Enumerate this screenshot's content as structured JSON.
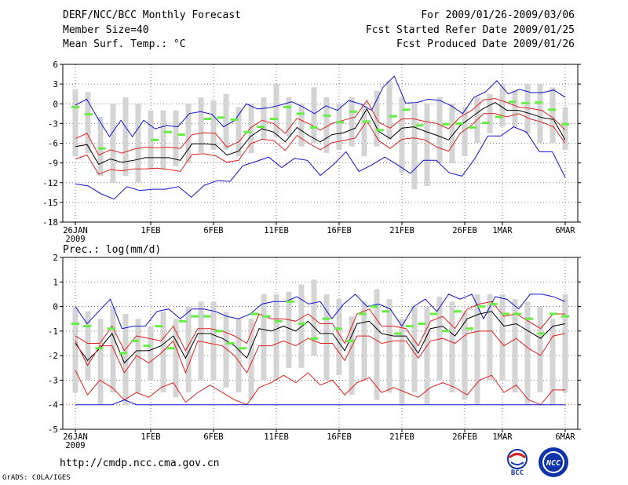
{
  "header": {
    "title": "DERF/NCC/BCC Monthly Forecast",
    "member_size": "Member Size=40",
    "variable": "Mean Surf. Temp.: °C",
    "period": "For 2009/01/26-2009/03/06",
    "started": "Fcst Started Refer Date 2009/01/25",
    "produced": "Fcst Produced Date 2009/01/26"
  },
  "footer": {
    "url": "http://cmdp.ncc.cma.gov.cn",
    "grads": "GrADS: COLA/IGES",
    "logo_bcc": "BCC",
    "logo_ncc": "NCC"
  },
  "colors": {
    "box": "#d4d4d4",
    "median": "#66ee44",
    "mean": "#000000",
    "inner": "#dd2222",
    "outer": "#1111cc",
    "grid": "#555555"
  },
  "chart_data": [
    {
      "id": "temp",
      "type": "line",
      "title": "Mean Surf. Temp.: °C",
      "ylim": [
        -18,
        6
      ],
      "yticks": [
        -18,
        -15,
        -12,
        -9,
        -6,
        -3,
        0,
        3,
        6
      ],
      "x_tick_labels": [
        {
          "day": 0,
          "label": "26JAN",
          "sub": "2009"
        },
        {
          "day": 6,
          "label": "1FEB"
        },
        {
          "day": 11,
          "label": "6FEB"
        },
        {
          "day": 16,
          "label": "11FEB"
        },
        {
          "day": 21,
          "label": "16FEB"
        },
        {
          "day": 26,
          "label": "21FEB"
        },
        {
          "day": 31,
          "label": "26FEB"
        },
        {
          "day": 34,
          "label": "1MAR"
        },
        {
          "day": 39,
          "label": "6MAR"
        }
      ],
      "boxes": [
        {
          "low": -8,
          "high": 2.2
        },
        {
          "low": -7.5,
          "high": 1.8
        },
        {
          "low": -11,
          "high": -2
        },
        {
          "low": -12,
          "high": 0
        },
        {
          "low": -11,
          "high": 1
        },
        {
          "low": -12,
          "high": 0
        },
        {
          "low": -10,
          "high": -1
        },
        {
          "low": -10,
          "high": -1
        },
        {
          "low": -9.5,
          "high": -1
        },
        {
          "low": -9,
          "high": 0
        },
        {
          "low": -7.5,
          "high": 1
        },
        {
          "low": -7,
          "high": 0.5
        },
        {
          "low": -7,
          "high": 1.5
        },
        {
          "low": -8,
          "high": -0.5
        },
        {
          "low": -7.5,
          "high": 0
        },
        {
          "low": -5.5,
          "high": 1
        },
        {
          "low": -5,
          "high": 3
        },
        {
          "low": -5,
          "high": 1
        },
        {
          "low": -6.5,
          "high": 0
        },
        {
          "low": -6,
          "high": 2.5
        },
        {
          "low": -7.5,
          "high": 1
        },
        {
          "low": -7,
          "high": 0
        },
        {
          "low": -6.5,
          "high": 1
        },
        {
          "low": -8,
          "high": 0
        },
        {
          "low": -6.5,
          "high": 2
        },
        {
          "low": -5.5,
          "high": 3.5
        },
        {
          "low": -10.5,
          "high": 1
        },
        {
          "low": -13,
          "high": 0
        },
        {
          "low": -12.5,
          "high": 0
        },
        {
          "low": -9,
          "high": 1
        },
        {
          "low": -9,
          "high": 0
        },
        {
          "low": -8,
          "high": -0.5
        },
        {
          "low": -6,
          "high": 1
        },
        {
          "low": -4.5,
          "high": 1.5
        },
        {
          "low": -3.5,
          "high": 3
        },
        {
          "low": -3.5,
          "high": 2
        },
        {
          "low": -4.5,
          "high": 3
        },
        {
          "low": -6,
          "high": 3
        },
        {
          "low": -6,
          "high": 2.5
        },
        {
          "low": -7,
          "high": -0.5
        }
      ],
      "series": [
        {
          "name": "max",
          "style": "outer",
          "values": [
            -0.2,
            0.7,
            -2.3,
            -5,
            -2.5,
            -5,
            -2.5,
            -3.8,
            -3.3,
            -3.5,
            -1.5,
            -1.2,
            -1.6,
            -3.5,
            -2.5,
            0,
            -0.8,
            -0.6,
            -0.2,
            0.3,
            -0.5,
            -1.5,
            -0.3,
            -1,
            0.5,
            0,
            -1,
            2.5,
            4.2,
            0.1,
            0.2,
            0.7,
            0.5,
            -0.3,
            -1.5,
            1,
            1.8,
            3.5,
            1.5,
            2.2,
            1.7,
            1.7,
            2.1,
            1
          ]
        },
        {
          "name": "upper",
          "style": "inner",
          "values": [
            -5.3,
            -4.5,
            -7.8,
            -7,
            -7.5,
            -6.9,
            -6.6,
            -6.7,
            -6.6,
            -6.8,
            -4.7,
            -4.4,
            -4.5,
            -6.6,
            -5.8,
            -3.7,
            -2.5,
            -3,
            -4.5,
            -2.2,
            -3,
            -4,
            -3,
            -2.5,
            -2,
            0.5,
            -2.8,
            -3.7,
            -2.3,
            -2.3,
            -2.7,
            -3,
            -3.8,
            -2,
            -1,
            0.6,
            0.8,
            0.2,
            -0.5,
            -0.7,
            -1,
            -2.2,
            -4
          ]
        },
        {
          "name": "mean",
          "style": "mean",
          "values": [
            -6.5,
            -6.2,
            -9.2,
            -8.4,
            -8.9,
            -8.6,
            -8.2,
            -8.2,
            -8.2,
            -8.6,
            -6.1,
            -6.1,
            -6.2,
            -7.8,
            -7.2,
            -5,
            -3.8,
            -4.3,
            -5.8,
            -3.6,
            -4.8,
            -5.8,
            -4.7,
            -4.4,
            -3.7,
            -0.8,
            -4.2,
            -5.3,
            -3.7,
            -3.5,
            -4.2,
            -4.8,
            -5.5,
            -3.3,
            -2,
            -0.7,
            0.2,
            -1,
            -1,
            -1.5,
            -2.1,
            -2.4,
            -5.5
          ]
        },
        {
          "name": "lower",
          "style": "inner",
          "values": [
            -8.4,
            -7.8,
            -10.7,
            -10,
            -10.2,
            -9.9,
            -9.9,
            -9.8,
            -10,
            -10.3,
            -7.7,
            -7.6,
            -7.9,
            -8.9,
            -8.6,
            -6.1,
            -5.4,
            -5.6,
            -7.1,
            -4.8,
            -6,
            -7,
            -5.9,
            -5.6,
            -5.2,
            -2.6,
            -5.6,
            -6.8,
            -5.4,
            -5.2,
            -5.5,
            -6.6,
            -7.2,
            -4.5,
            -3.2,
            -1.5,
            -1.5,
            -2,
            -1.5,
            -2.3,
            -2.8,
            -3.5,
            -6
          ]
        },
        {
          "name": "min",
          "style": "outer",
          "values": [
            -12.2,
            -12.5,
            -13.7,
            -14.5,
            -12.6,
            -13.2,
            -13,
            -13,
            -12.6,
            -14.2,
            -12.4,
            -11.7,
            -11.8,
            -9.4,
            -8.8,
            -8.1,
            -9.7,
            -8.3,
            -8.6,
            -10.9,
            -9.3,
            -7.3,
            -10.3,
            -9.3,
            -8.1,
            -9.3,
            -10.6,
            -8.6,
            -8.6,
            -10.5,
            -11,
            -8.3,
            -4.9,
            -4.9,
            -3.5,
            -4.3,
            -7.3,
            -7.3,
            -11.2
          ]
        }
      ],
      "medians": [
        -0.5,
        -1.6,
        -6.8,
        null,
        null,
        null,
        -5.5,
        -4.3,
        -4.7,
        null,
        -2.3,
        -2.1,
        -2.4,
        -4.3,
        -3.5,
        -2.3,
        -0.5,
        -1.5,
        -3.6,
        -1.8,
        -2.8,
        -1.2,
        -2.7,
        -4,
        -1.9,
        -0.9,
        -3.3,
        null,
        -3.1,
        -3,
        -3.6,
        -2.9,
        -2,
        0.3,
        0.1,
        0.2,
        -0.9,
        -3.1
      ]
    },
    {
      "id": "prec",
      "type": "line",
      "title": "Prec.: log(mm/d)",
      "ylim": [
        -5,
        2
      ],
      "yticks": [
        -5,
        -4,
        -3,
        -2,
        -1,
        0,
        1,
        2
      ],
      "x_tick_labels": [
        {
          "day": 0,
          "label": "26JAN",
          "sub": "2009"
        },
        {
          "day": 6,
          "label": "1FEB"
        },
        {
          "day": 11,
          "label": "6FEB"
        },
        {
          "day": 16,
          "label": "11FEB"
        },
        {
          "day": 21,
          "label": "16FEB"
        },
        {
          "day": 26,
          "label": "21FEB"
        },
        {
          "day": 31,
          "label": "26FEB"
        },
        {
          "day": 34,
          "label": "1MAR"
        },
        {
          "day": 39,
          "label": "6MAR"
        }
      ],
      "boxes": [
        {
          "low": -3.5,
          "high": 0
        },
        {
          "low": -3,
          "high": -0.2
        },
        {
          "low": -4,
          "high": -0.5
        },
        {
          "low": -3.5,
          "high": 0
        },
        {
          "low": -4,
          "high": -0.3
        },
        {
          "low": -3.5,
          "high": -0.5
        },
        {
          "low": -3,
          "high": -0.8
        },
        {
          "low": -3.5,
          "high": -0.2
        },
        {
          "low": -3.7,
          "high": -0.5
        },
        {
          "low": -3.5,
          "high": 0
        },
        {
          "low": -3,
          "high": 0.2
        },
        {
          "low": -3,
          "high": 0.2
        },
        {
          "low": -3.3,
          "high": -0.2
        },
        {
          "low": -3.5,
          "high": -0.5
        },
        {
          "low": -3.8,
          "high": -0.5
        },
        {
          "low": -3,
          "high": 0.5
        },
        {
          "low": -3,
          "high": 0.5
        },
        {
          "low": -2.5,
          "high": 0.6
        },
        {
          "low": -2.5,
          "high": 0.9
        },
        {
          "low": -2,
          "high": 1.1
        },
        {
          "low": -3,
          "high": 0.5
        },
        {
          "low": -2.8,
          "high": 0.3
        },
        {
          "low": -3.6,
          "high": -0.4
        },
        {
          "low": -3,
          "high": 0.2
        },
        {
          "low": -3.8,
          "high": 0.7
        },
        {
          "low": -3.5,
          "high": 0.3
        },
        {
          "low": -4,
          "high": -0.5
        },
        {
          "low": -3.5,
          "high": 0
        },
        {
          "low": -4,
          "high": 0
        },
        {
          "low": -3,
          "high": 0.4
        },
        {
          "low": -3.5,
          "high": 0.2
        },
        {
          "low": -3.8,
          "high": -0.2
        },
        {
          "low": -4,
          "high": 0.5
        },
        {
          "low": -3,
          "high": 0.5
        },
        {
          "low": -3,
          "high": 0.5
        },
        {
          "low": -3.5,
          "high": 0.3
        },
        {
          "low": -4,
          "high": 0.2
        },
        {
          "low": -3.5,
          "high": 0
        },
        {
          "low": -4,
          "high": -0.5
        },
        {
          "low": -3.5,
          "high": 0.5
        }
      ],
      "series": [
        {
          "name": "max",
          "style": "outer",
          "values": [
            0,
            -0.7,
            -0.2,
            0.3,
            -0.9,
            -0.8,
            -0.8,
            -0.2,
            -0.1,
            -0.5,
            -0.1,
            -0.1,
            -0.2,
            -0.4,
            -0.5,
            -0.3,
            0.1,
            0.2,
            0.2,
            0.4,
            0.1,
            0.2,
            -0.5,
            0.1,
            0.5,
            0,
            0.1,
            -0.1,
            -0.8,
            0,
            0.3,
            -0.2,
            0.5,
            0.3,
            0.5,
            -0.5,
            0.4,
            0.3,
            -0.1,
            0.5,
            0.5,
            0.4,
            0.2
          ]
        },
        {
          "name": "upper",
          "style": "inner",
          "values": [
            -1.2,
            -1.5,
            -1.5,
            -0.8,
            -1.8,
            -1.2,
            -1.3,
            -1.4,
            -0.8,
            -1.8,
            -0.9,
            -0.9,
            -1,
            -1.2,
            -1.5,
            -0.3,
            -0.5,
            -0.5,
            -0.6,
            -0.3,
            -0.7,
            -0.7,
            -1.5,
            -0.3,
            -0.1,
            -0.8,
            -0.8,
            -0.9,
            -1.6,
            -0.6,
            -0.4,
            -0.9,
            -0.1,
            0.1,
            0.2,
            -0.4,
            -0.3,
            -0.6,
            -0.9,
            -0.3,
            -0.3
          ]
        },
        {
          "name": "mean",
          "style": "mean",
          "values": [
            -1.5,
            -2.2,
            -1.7,
            -1.1,
            -2.3,
            -1.8,
            -1.8,
            -1.6,
            -1.2,
            -2.1,
            -1.1,
            -1.1,
            -1.3,
            -1.6,
            -2.1,
            -0.9,
            -1,
            -0.8,
            -1,
            -0.6,
            -1.1,
            -1.1,
            -1.8,
            -0.7,
            -0.6,
            -1.1,
            -1.2,
            -1.2,
            -1.9,
            -0.9,
            -0.8,
            -1.2,
            -0.5,
            -0.3,
            -0.2,
            -0.8,
            -0.7,
            -1,
            -1.3,
            -0.8,
            -0.7
          ]
        },
        {
          "name": "lower",
          "style": "inner",
          "values": [
            -1.4,
            -2.4,
            -1.6,
            -1.6,
            -2.7,
            -2,
            -2.3,
            -1.9,
            -1.4,
            -2.7,
            -1.4,
            -1.5,
            -1.6,
            -2,
            -2.7,
            -1.6,
            -1.6,
            -1.4,
            -1.6,
            -1.3,
            -1.5,
            -1.5,
            -2.2,
            -1.2,
            -1.2,
            -1.5,
            -1.4,
            -1.4,
            -2.1,
            -1.4,
            -1.3,
            -1.5,
            -1.1,
            -1,
            -1,
            -1.6,
            -1.3,
            -1.7,
            -2,
            -1.2,
            -1.1
          ]
        },
        {
          "name": "bottom",
          "style": "inner",
          "values": [
            -2.6,
            -3.6,
            -3,
            -3.3,
            -3.8,
            -3.5,
            -3.7,
            -3.3,
            -3.1,
            -3.9,
            -3.5,
            -3.2,
            -3.5,
            -3.8,
            -4,
            -3.3,
            -3.1,
            -2.8,
            -3.1,
            -2.7,
            -3.2,
            -3,
            -3.6,
            -3.1,
            -2.9,
            -3.5,
            -3.3,
            -3.5,
            -3.7,
            -3.3,
            -3.1,
            -3.3,
            -3.6,
            -3,
            -2.8,
            -3.5,
            -3.2,
            -3.8,
            -4,
            -3.4,
            -3.4
          ]
        },
        {
          "name": "min",
          "style": "outer",
          "values": [
            -4,
            -4,
            -4,
            -4,
            -3.8,
            -4,
            -4,
            -4,
            -4,
            -4,
            -4,
            -4,
            -4,
            -4,
            -4,
            -4,
            -4,
            -4,
            -4,
            -4,
            -4,
            -4,
            -4,
            -4,
            -4,
            -4,
            -4,
            -4,
            -4,
            -4,
            -4,
            -4,
            -4,
            -4,
            -4,
            -4,
            -4,
            -4,
            -4,
            -4,
            -4
          ]
        }
      ],
      "medians": [
        -0.7,
        -0.8,
        -1.7,
        -0.9,
        -1.9,
        -1.4,
        -1.6,
        -0.8,
        -1.7,
        -0.6,
        -0.4,
        -0.4,
        -1,
        -1.5,
        -1.7,
        -0.3,
        -0.4,
        -0.6,
        0.2,
        -0.7,
        -1.3,
        -0.5,
        -0.9,
        -1.4,
        -0.3,
        0,
        -0.2,
        -1.1,
        -0.8,
        -0.7,
        -0.3,
        -1,
        -0.2,
        -0.9,
        0,
        0.1,
        -0.3,
        -0.3,
        -0.5,
        -1.1,
        -0.3,
        -0.4
      ]
    }
  ]
}
